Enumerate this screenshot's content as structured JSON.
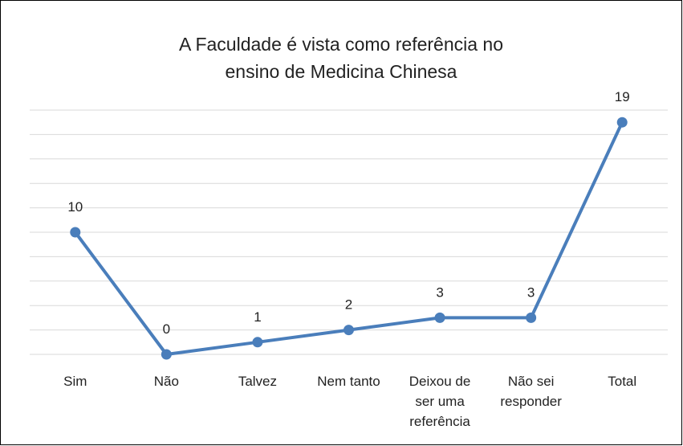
{
  "chart_data": {
    "type": "line",
    "title": "A Faculdade é vista como referência no ensino de Medicina Chinesa",
    "categories": [
      "Sim",
      "Não",
      "Talvez",
      "Nem tanto",
      "Deixou de ser uma referência",
      "Não sei responder",
      "Total"
    ],
    "values": [
      10,
      0,
      1,
      2,
      3,
      3,
      19
    ],
    "color": "#4a7ebb",
    "ylim": [
      0,
      20
    ],
    "yticks": [
      0,
      2,
      4,
      6,
      8,
      10,
      12,
      14,
      16,
      18,
      20
    ],
    "grid": true
  }
}
